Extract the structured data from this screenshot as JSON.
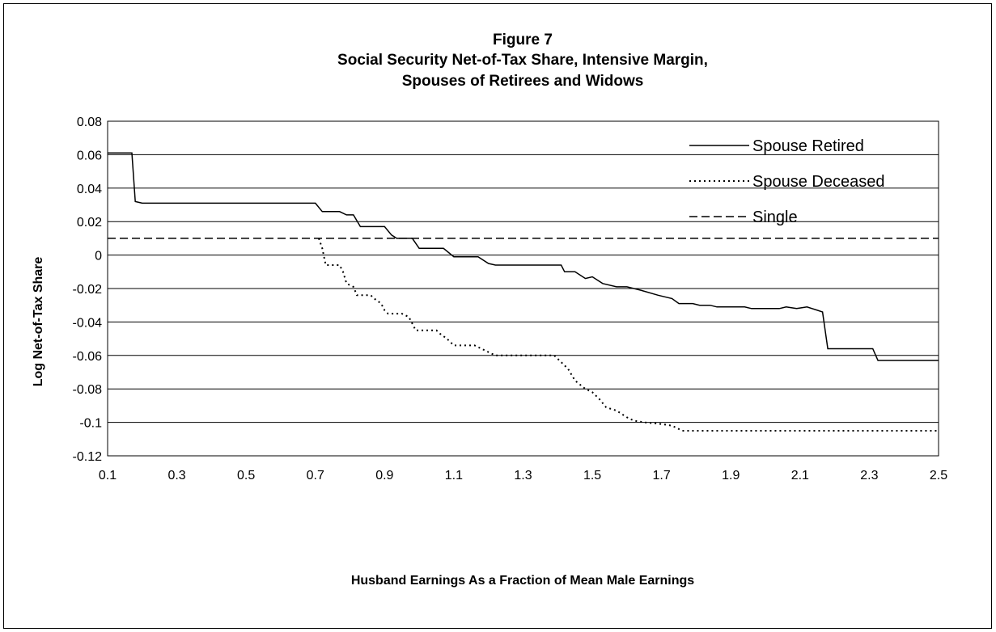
{
  "chart_data": {
    "type": "line",
    "title": [
      "Figure 7",
      "Social Security Net-of-Tax Share, Intensive Margin,",
      "Spouses of Retirees and Widows"
    ],
    "xlabel": "Husband Earnings As a Fraction of Mean Male Earnings",
    "ylabel": "Log Net-of-Tax Share",
    "xlim": [
      0.1,
      2.5
    ],
    "ylim": [
      -0.12,
      0.08
    ],
    "xticks": [
      "0.1",
      "0.3",
      "0.5",
      "0.7",
      "0.9",
      "1.1",
      "1.3",
      "1.5",
      "1.7",
      "1.9",
      "2.1",
      "2.3",
      "2.5"
    ],
    "yticks": [
      "0.08",
      "0.06",
      "0.04",
      "0.02",
      "0",
      "-0.02",
      "-0.04",
      "-0.06",
      "-0.08",
      "-0.1",
      "-0.12"
    ],
    "grid": "horizontal",
    "legend_position": "top-right",
    "series": [
      {
        "name": "Spouse Retired",
        "style": "solid",
        "points": [
          [
            0.1,
            0.061
          ],
          [
            0.17,
            0.061
          ],
          [
            0.18,
            0.032
          ],
          [
            0.2,
            0.031
          ],
          [
            0.22,
            0.031
          ],
          [
            0.7,
            0.031
          ],
          [
            0.72,
            0.026
          ],
          [
            0.77,
            0.026
          ],
          [
            0.79,
            0.024
          ],
          [
            0.81,
            0.024
          ],
          [
            0.83,
            0.017
          ],
          [
            0.9,
            0.017
          ],
          [
            0.92,
            0.012
          ],
          [
            0.935,
            0.01
          ],
          [
            0.98,
            0.01
          ],
          [
            1.0,
            0.004
          ],
          [
            1.07,
            0.004
          ],
          [
            1.1,
            -0.001
          ],
          [
            1.17,
            -0.001
          ],
          [
            1.2,
            -0.005
          ],
          [
            1.22,
            -0.006
          ],
          [
            1.41,
            -0.006
          ],
          [
            1.42,
            -0.01
          ],
          [
            1.45,
            -0.01
          ],
          [
            1.48,
            -0.014
          ],
          [
            1.5,
            -0.013
          ],
          [
            1.53,
            -0.017
          ],
          [
            1.57,
            -0.019
          ],
          [
            1.6,
            -0.019
          ],
          [
            1.64,
            -0.021
          ],
          [
            1.69,
            -0.024
          ],
          [
            1.73,
            -0.026
          ],
          [
            1.75,
            -0.029
          ],
          [
            1.79,
            -0.029
          ],
          [
            1.81,
            -0.03
          ],
          [
            1.84,
            -0.03
          ],
          [
            1.86,
            -0.031
          ],
          [
            1.94,
            -0.031
          ],
          [
            1.96,
            -0.032
          ],
          [
            2.04,
            -0.032
          ],
          [
            2.06,
            -0.031
          ],
          [
            2.09,
            -0.032
          ],
          [
            2.12,
            -0.031
          ],
          [
            2.15,
            -0.033
          ],
          [
            2.165,
            -0.034
          ],
          [
            2.18,
            -0.056
          ],
          [
            2.31,
            -0.056
          ],
          [
            2.325,
            -0.063
          ],
          [
            2.5,
            -0.063
          ]
        ]
      },
      {
        "name": "Spouse Deceased",
        "style": "dotted",
        "points": [
          [
            0.71,
            0.01
          ],
          [
            0.72,
            0.004
          ],
          [
            0.73,
            -0.006
          ],
          [
            0.77,
            -0.006
          ],
          [
            0.78,
            -0.01
          ],
          [
            0.79,
            -0.017
          ],
          [
            0.81,
            -0.019
          ],
          [
            0.82,
            -0.024
          ],
          [
            0.86,
            -0.024
          ],
          [
            0.87,
            -0.026
          ],
          [
            0.89,
            -0.029
          ],
          [
            0.9,
            -0.033
          ],
          [
            0.91,
            -0.035
          ],
          [
            0.95,
            -0.035
          ],
          [
            0.97,
            -0.037
          ],
          [
            0.98,
            -0.041
          ],
          [
            0.99,
            -0.045
          ],
          [
            1.05,
            -0.045
          ],
          [
            1.06,
            -0.047
          ],
          [
            1.08,
            -0.05
          ],
          [
            1.1,
            -0.054
          ],
          [
            1.16,
            -0.054
          ],
          [
            1.18,
            -0.056
          ],
          [
            1.2,
            -0.058
          ],
          [
            1.22,
            -0.06
          ],
          [
            1.39,
            -0.06
          ],
          [
            1.41,
            -0.064
          ],
          [
            1.43,
            -0.068
          ],
          [
            1.45,
            -0.075
          ],
          [
            1.48,
            -0.08
          ],
          [
            1.5,
            -0.082
          ],
          [
            1.52,
            -0.086
          ],
          [
            1.54,
            -0.091
          ],
          [
            1.57,
            -0.093
          ],
          [
            1.6,
            -0.097
          ],
          [
            1.62,
            -0.099
          ],
          [
            1.65,
            -0.1
          ],
          [
            1.7,
            -0.101
          ],
          [
            1.73,
            -0.102
          ],
          [
            1.76,
            -0.105
          ],
          [
            2.5,
            -0.105
          ]
        ]
      },
      {
        "name": "Single",
        "style": "dashed",
        "points": [
          [
            0.1,
            0.01
          ],
          [
            2.5,
            0.01
          ]
        ]
      }
    ]
  }
}
